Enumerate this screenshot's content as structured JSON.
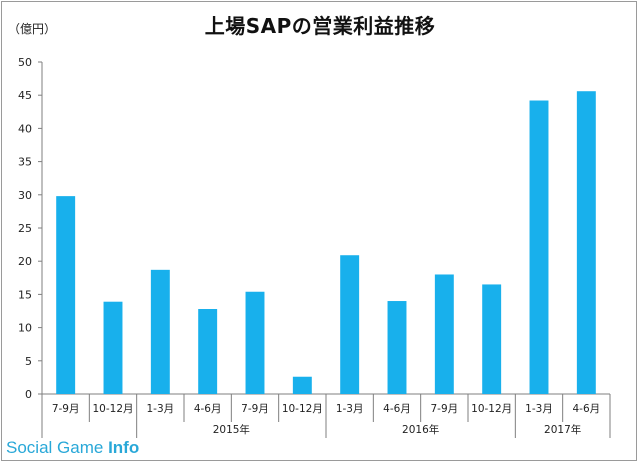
{
  "chart_data": {
    "type": "bar",
    "title": "上場SAPの営業利益推移",
    "unit_label": "（億円）",
    "ylim": [
      0,
      50
    ],
    "yticks": [
      0,
      5,
      10,
      15,
      20,
      25,
      30,
      35,
      40,
      45,
      50
    ],
    "grid": false,
    "bar_color": "#18b0ec",
    "categories": [
      "7-9月",
      "10-12月",
      "1-3月",
      "4-6月",
      "7-9月",
      "10-12月",
      "1-3月",
      "4-6月",
      "7-9月",
      "10-12月",
      "1-3月",
      "4-6月"
    ],
    "values": [
      29.8,
      13.9,
      18.7,
      12.8,
      15.4,
      2.6,
      20.9,
      14.0,
      18.0,
      16.5,
      44.2,
      45.6
    ],
    "groups": [
      {
        "label": "",
        "start": 0,
        "count": 2
      },
      {
        "label": "2015年",
        "start": 2,
        "count": 4
      },
      {
        "label": "2016年",
        "start": 6,
        "count": 4
      },
      {
        "label": "2017年",
        "start": 10,
        "count": 2
      }
    ]
  },
  "watermark": {
    "part1": "Social Game",
    "part2": "Info"
  }
}
